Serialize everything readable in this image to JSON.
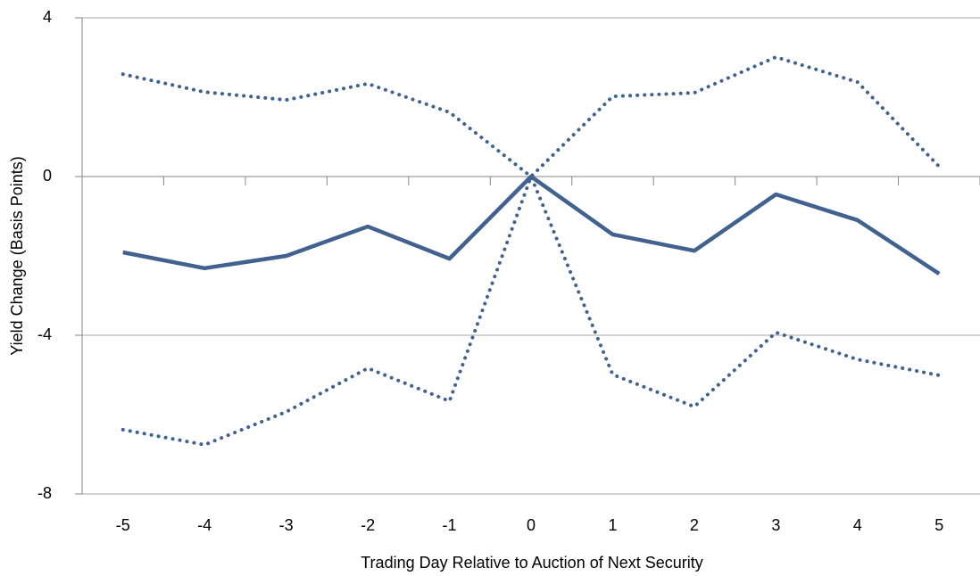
{
  "chart_data": {
    "type": "line",
    "x_label": "Trading Day Relative to Auction of Next Security",
    "y_label": "Yield Change (Basis Points)",
    "categories": [
      "-5",
      "-4",
      "-3",
      "-2",
      "-1",
      "0",
      "1",
      "2",
      "3",
      "4",
      "5"
    ],
    "series": [
      {
        "color": "#41618f",
        "style": "solid",
        "values": [
          -1.91,
          -2.31,
          -2.0,
          -1.26,
          -2.07,
          0,
          -1.46,
          -1.87,
          -0.45,
          -1.1,
          -2.45
        ]
      },
      {
        "color": "#41618f",
        "style": "dotted",
        "values": [
          2.58,
          2.13,
          1.93,
          2.34,
          1.62,
          0,
          2.02,
          2.11,
          3.01,
          2.38,
          0.25
        ]
      },
      {
        "color": "#41618f",
        "style": "dotted",
        "values": [
          -6.38,
          -6.76,
          -5.93,
          -4.83,
          -5.66,
          0,
          -4.99,
          -5.8,
          -3.93,
          -4.61,
          -5.01
        ]
      }
    ],
    "ylim": [
      -8,
      4
    ],
    "yticks": [
      -8,
      -4,
      0,
      4
    ],
    "grid": true
  }
}
